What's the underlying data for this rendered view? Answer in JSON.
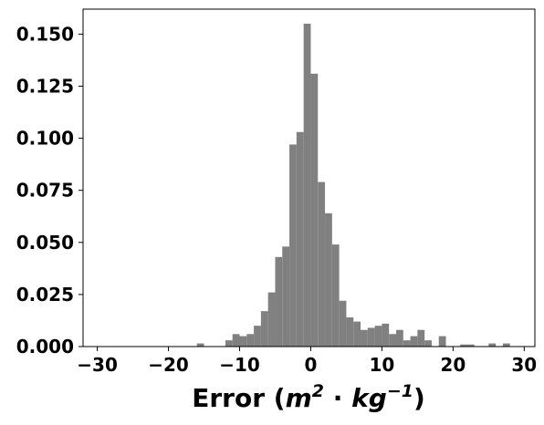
{
  "chart_data": {
    "type": "bar",
    "title": "",
    "xlabel_parts": {
      "open": "Error (",
      "m": "m",
      "m_exp": "2",
      "dot": " · ",
      "kg": "kg",
      "kg_exp": "−1",
      "close": ")"
    },
    "ylabel": "",
    "xlim": [
      -32,
      31.5
    ],
    "ylim": [
      0,
      0.162
    ],
    "bin_width": 1,
    "bin_lefts": [
      -16,
      -12,
      -11,
      -10,
      -9,
      -8,
      -7,
      -6,
      -5,
      -4,
      -3,
      -2,
      -1,
      0,
      1,
      2,
      3,
      4,
      5,
      6,
      7,
      8,
      9,
      10,
      11,
      12,
      13,
      14,
      15,
      16,
      18,
      21,
      22,
      25,
      27
    ],
    "values": [
      0.0015,
      0.003,
      0.006,
      0.005,
      0.006,
      0.01,
      0.017,
      0.026,
      0.043,
      0.048,
      0.097,
      0.103,
      0.155,
      0.131,
      0.079,
      0.064,
      0.049,
      0.022,
      0.014,
      0.012,
      0.008,
      0.009,
      0.01,
      0.011,
      0.006,
      0.008,
      0.003,
      0.005,
      0.008,
      0.003,
      0.005,
      0.001,
      0.001,
      0.0015,
      0.0015
    ],
    "bar_color": "#808080",
    "xticks": [
      -30,
      -20,
      -10,
      0,
      10,
      20,
      30
    ],
    "xtick_labels": [
      "−30",
      "−20",
      "−10",
      "0",
      "10",
      "20",
      "30"
    ],
    "yticks": [
      0.0,
      0.025,
      0.05,
      0.075,
      0.1,
      0.125,
      0.15
    ],
    "ytick_labels": [
      "0.000",
      "0.025",
      "0.050",
      "0.075",
      "0.100",
      "0.125",
      "0.150"
    ],
    "grid": false,
    "legend": "none"
  }
}
